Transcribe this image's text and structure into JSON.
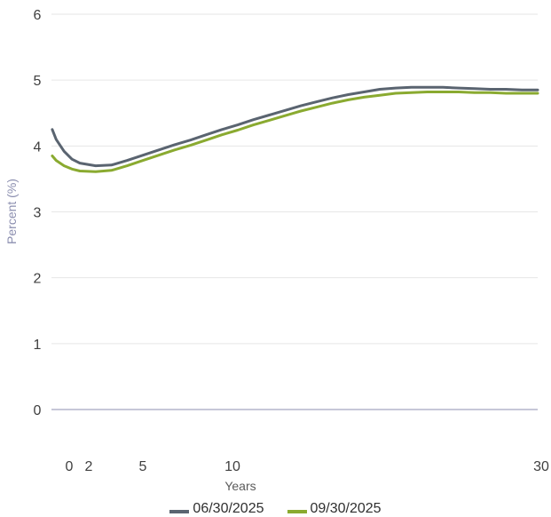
{
  "colors": {
    "series_1": "#5a6470",
    "series_2": "#8aaa30",
    "grid": "#e6e6e6",
    "zero_line": "#8c8fb0"
  },
  "chart_data": {
    "type": "line",
    "title": "",
    "xlabel": "Years",
    "ylabel": "Percent (%)",
    "xlim": [
      -0.8,
      30
    ],
    "ylim": [
      0,
      6
    ],
    "x_ticks": [
      0,
      2,
      5,
      10,
      30
    ],
    "y_ticks": [
      0,
      1,
      2,
      3,
      4,
      5,
      6
    ],
    "grid": true,
    "legend_position": "bottom",
    "series": [
      {
        "name": "06/30/2025",
        "color_key": "series_1",
        "points": [
          [
            -0.75,
            4.25
          ],
          [
            -0.5,
            4.1
          ],
          [
            0,
            3.92
          ],
          [
            0.5,
            3.8
          ],
          [
            1,
            3.74
          ],
          [
            2,
            3.7
          ],
          [
            3,
            3.71
          ],
          [
            4,
            3.78
          ],
          [
            5,
            3.86
          ],
          [
            6,
            3.94
          ],
          [
            7,
            4.02
          ],
          [
            8,
            4.09
          ],
          [
            9,
            4.17
          ],
          [
            10,
            4.25
          ],
          [
            11,
            4.32
          ],
          [
            12,
            4.4
          ],
          [
            13,
            4.47
          ],
          [
            14,
            4.54
          ],
          [
            15,
            4.61
          ],
          [
            16,
            4.67
          ],
          [
            17,
            4.73
          ],
          [
            18,
            4.78
          ],
          [
            19,
            4.82
          ],
          [
            20,
            4.86
          ],
          [
            21,
            4.88
          ],
          [
            22,
            4.89
          ],
          [
            23,
            4.89
          ],
          [
            24,
            4.89
          ],
          [
            25,
            4.88
          ],
          [
            26,
            4.87
          ],
          [
            27,
            4.86
          ],
          [
            28,
            4.86
          ],
          [
            29,
            4.85
          ],
          [
            30,
            4.85
          ]
        ]
      },
      {
        "name": "09/30/2025",
        "color_key": "series_2",
        "points": [
          [
            -0.75,
            3.85
          ],
          [
            -0.5,
            3.78
          ],
          [
            0,
            3.7
          ],
          [
            0.5,
            3.65
          ],
          [
            1,
            3.62
          ],
          [
            2,
            3.61
          ],
          [
            3,
            3.63
          ],
          [
            4,
            3.7
          ],
          [
            5,
            3.78
          ],
          [
            6,
            3.86
          ],
          [
            7,
            3.94
          ],
          [
            8,
            4.01
          ],
          [
            9,
            4.09
          ],
          [
            10,
            4.17
          ],
          [
            11,
            4.24
          ],
          [
            12,
            4.32
          ],
          [
            13,
            4.39
          ],
          [
            14,
            4.46
          ],
          [
            15,
            4.53
          ],
          [
            16,
            4.59
          ],
          [
            17,
            4.65
          ],
          [
            18,
            4.7
          ],
          [
            19,
            4.74
          ],
          [
            20,
            4.77
          ],
          [
            21,
            4.8
          ],
          [
            22,
            4.81
          ],
          [
            23,
            4.82
          ],
          [
            24,
            4.82
          ],
          [
            25,
            4.82
          ],
          [
            26,
            4.81
          ],
          [
            27,
            4.81
          ],
          [
            28,
            4.8
          ],
          [
            29,
            4.8
          ],
          [
            30,
            4.8
          ]
        ]
      }
    ]
  },
  "legend": {
    "item_1": "06/30/2025",
    "item_2": "09/30/2025"
  }
}
